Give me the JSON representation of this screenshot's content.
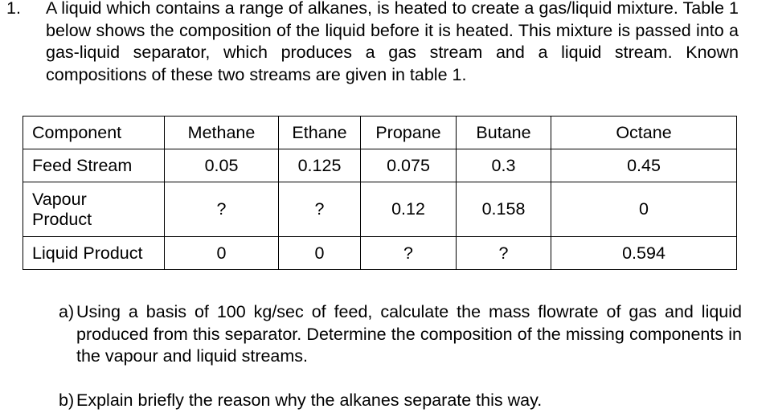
{
  "question": {
    "number": "1.",
    "text": "A liquid which contains a range of alkanes, is heated to create a gas/liquid mixture. Table 1 below shows the composition of the liquid before it is heated. This mixture is passed into a gas-liquid separator, which produces a gas stream and a liquid stream. Known compositions of these two streams are given in table 1."
  },
  "table": {
    "header": [
      "Component",
      "Methane",
      "Ethane",
      "Propane",
      "Butane",
      "Octane"
    ],
    "rows": [
      [
        "Feed Stream",
        "0.05",
        "0.125",
        "0.075",
        "0.3",
        "0.45"
      ],
      [
        "Vapour Product",
        "?",
        "?",
        "0.12",
        "0.158",
        "0"
      ],
      [
        "Liquid Product",
        "0",
        "0",
        "?",
        "?",
        "0.594"
      ]
    ]
  },
  "parts": [
    {
      "label": "a)",
      "text": "Using a basis of 100 kg/sec of feed, calculate the mass flowrate of gas and liquid produced from this separator. Determine the composition of the missing components in the vapour and liquid streams."
    },
    {
      "label": "b)",
      "text": "Explain briefly the reason why the alkanes separate this way."
    }
  ]
}
